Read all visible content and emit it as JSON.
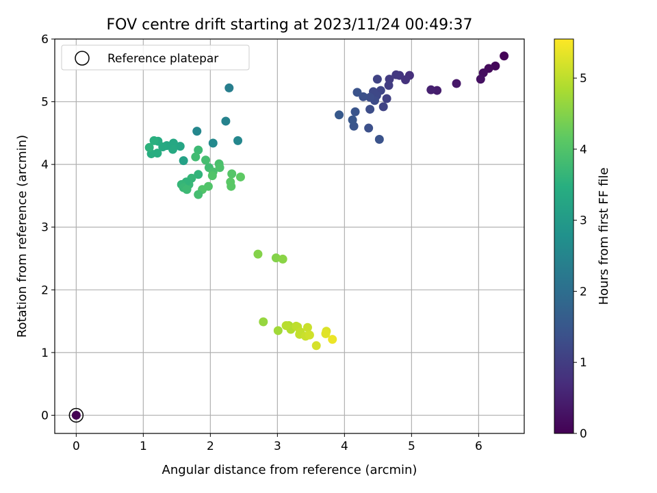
{
  "chart_data": {
    "type": "scatter",
    "title": "FOV centre drift starting at 2023/11/24 00:49:37",
    "xlabel": "Angular distance from reference (arcmin)",
    "ylabel": "Rotation from reference (arcmin)",
    "xlim": [
      -0.32,
      6.68
    ],
    "ylim": [
      -0.29,
      6.0
    ],
    "xticks": [
      0,
      1,
      2,
      3,
      4,
      5,
      6
    ],
    "yticks": [
      0,
      1,
      2,
      3,
      4,
      5,
      6
    ],
    "grid": true,
    "legend": {
      "placement": "top-left",
      "entries": [
        "Reference platepar"
      ]
    },
    "colorbar": {
      "label": "Hours from first FF file",
      "colormap": "viridis",
      "range": [
        0,
        5.55
      ],
      "ticks": [
        0,
        1,
        2,
        3,
        4,
        5
      ]
    },
    "reference_point": {
      "x": 0,
      "y": 0,
      "c": 0
    },
    "points": [
      {
        "x": 6.38,
        "y": 5.73,
        "c": 0.05
      },
      {
        "x": 6.25,
        "y": 5.57,
        "c": 0.1
      },
      {
        "x": 6.15,
        "y": 5.53,
        "c": 0.15
      },
      {
        "x": 6.07,
        "y": 5.46,
        "c": 0.2
      },
      {
        "x": 6.03,
        "y": 5.36,
        "c": 0.25
      },
      {
        "x": 5.67,
        "y": 5.29,
        "c": 0.35
      },
      {
        "x": 5.38,
        "y": 5.18,
        "c": 0.45
      },
      {
        "x": 5.29,
        "y": 5.19,
        "c": 0.5
      },
      {
        "x": 4.97,
        "y": 5.42,
        "c": 0.75
      },
      {
        "x": 4.91,
        "y": 5.35,
        "c": 0.8
      },
      {
        "x": 4.82,
        "y": 5.42,
        "c": 0.85
      },
      {
        "x": 4.77,
        "y": 5.43,
        "c": 0.9
      },
      {
        "x": 4.67,
        "y": 5.36,
        "c": 0.95
      },
      {
        "x": 4.66,
        "y": 5.26,
        "c": 1.0
      },
      {
        "x": 4.63,
        "y": 5.05,
        "c": 1.05
      },
      {
        "x": 4.58,
        "y": 4.92,
        "c": 1.1
      },
      {
        "x": 4.54,
        "y": 5.18,
        "c": 1.15
      },
      {
        "x": 4.49,
        "y": 5.36,
        "c": 1.1
      },
      {
        "x": 4.48,
        "y": 5.1,
        "c": 1.2
      },
      {
        "x": 4.45,
        "y": 5.02,
        "c": 1.25
      },
      {
        "x": 4.43,
        "y": 5.16,
        "c": 1.2
      },
      {
        "x": 4.38,
        "y": 5.07,
        "c": 1.3
      },
      {
        "x": 4.38,
        "y": 4.88,
        "c": 1.3
      },
      {
        "x": 4.36,
        "y": 4.58,
        "c": 1.35
      },
      {
        "x": 4.28,
        "y": 5.08,
        "c": 1.35
      },
      {
        "x": 4.19,
        "y": 5.15,
        "c": 1.4
      },
      {
        "x": 4.16,
        "y": 4.84,
        "c": 1.45
      },
      {
        "x": 4.14,
        "y": 4.61,
        "c": 1.45
      },
      {
        "x": 4.12,
        "y": 4.71,
        "c": 1.5
      },
      {
        "x": 4.52,
        "y": 4.4,
        "c": 1.4
      },
      {
        "x": 3.92,
        "y": 4.79,
        "c": 1.55
      },
      {
        "x": 2.28,
        "y": 5.22,
        "c": 2.35
      },
      {
        "x": 2.23,
        "y": 4.69,
        "c": 2.45
      },
      {
        "x": 2.41,
        "y": 4.38,
        "c": 2.55
      },
      {
        "x": 2.04,
        "y": 4.34,
        "c": 2.6
      },
      {
        "x": 1.8,
        "y": 4.53,
        "c": 2.55
      },
      {
        "x": 1.6,
        "y": 4.06,
        "c": 3.15
      },
      {
        "x": 1.55,
        "y": 4.29,
        "c": 3.25
      },
      {
        "x": 1.45,
        "y": 4.34,
        "c": 3.3
      },
      {
        "x": 1.44,
        "y": 4.24,
        "c": 3.35
      },
      {
        "x": 1.35,
        "y": 4.3,
        "c": 3.3
      },
      {
        "x": 1.29,
        "y": 4.28,
        "c": 3.35
      },
      {
        "x": 1.22,
        "y": 4.37,
        "c": 3.4
      },
      {
        "x": 1.21,
        "y": 4.18,
        "c": 3.45
      },
      {
        "x": 1.16,
        "y": 4.38,
        "c": 3.5
      },
      {
        "x": 1.12,
        "y": 4.17,
        "c": 3.45
      },
      {
        "x": 1.09,
        "y": 4.27,
        "c": 3.55
      },
      {
        "x": 1.82,
        "y": 4.23,
        "c": 3.75
      },
      {
        "x": 1.78,
        "y": 4.12,
        "c": 3.8
      },
      {
        "x": 1.93,
        "y": 4.07,
        "c": 3.85
      },
      {
        "x": 1.98,
        "y": 3.95,
        "c": 3.8
      },
      {
        "x": 2.13,
        "y": 4.01,
        "c": 3.9
      },
      {
        "x": 2.14,
        "y": 3.95,
        "c": 3.95
      },
      {
        "x": 2.04,
        "y": 3.88,
        "c": 3.9
      },
      {
        "x": 2.03,
        "y": 3.82,
        "c": 4.0
      },
      {
        "x": 1.82,
        "y": 3.84,
        "c": 3.6
      },
      {
        "x": 1.72,
        "y": 3.78,
        "c": 3.65
      },
      {
        "x": 1.68,
        "y": 3.68,
        "c": 3.7
      },
      {
        "x": 1.64,
        "y": 3.72,
        "c": 3.6
      },
      {
        "x": 1.57,
        "y": 3.68,
        "c": 3.65
      },
      {
        "x": 1.6,
        "y": 3.63,
        "c": 3.7
      },
      {
        "x": 1.65,
        "y": 3.6,
        "c": 3.75
      },
      {
        "x": 1.88,
        "y": 3.6,
        "c": 4.0
      },
      {
        "x": 1.97,
        "y": 3.65,
        "c": 4.0
      },
      {
        "x": 1.82,
        "y": 3.52,
        "c": 3.85
      },
      {
        "x": 2.32,
        "y": 3.85,
        "c": 4.05
      },
      {
        "x": 2.3,
        "y": 3.72,
        "c": 4.1
      },
      {
        "x": 2.31,
        "y": 3.65,
        "c": 4.1
      },
      {
        "x": 2.45,
        "y": 3.8,
        "c": 4.15
      },
      {
        "x": 2.71,
        "y": 2.57,
        "c": 4.5
      },
      {
        "x": 2.98,
        "y": 2.51,
        "c": 4.5
      },
      {
        "x": 3.08,
        "y": 2.49,
        "c": 4.55
      },
      {
        "x": 2.79,
        "y": 1.49,
        "c": 4.65
      },
      {
        "x": 3.01,
        "y": 1.35,
        "c": 4.75
      },
      {
        "x": 3.17,
        "y": 1.43,
        "c": 4.85
      },
      {
        "x": 3.2,
        "y": 1.37,
        "c": 4.9
      },
      {
        "x": 3.13,
        "y": 1.43,
        "c": 4.95
      },
      {
        "x": 3.3,
        "y": 1.41,
        "c": 5.0
      },
      {
        "x": 3.28,
        "y": 1.42,
        "c": 5.0
      },
      {
        "x": 3.34,
        "y": 1.33,
        "c": 5.05
      },
      {
        "x": 3.33,
        "y": 1.29,
        "c": 5.05
      },
      {
        "x": 3.42,
        "y": 1.26,
        "c": 5.1
      },
      {
        "x": 3.45,
        "y": 1.4,
        "c": 5.1
      },
      {
        "x": 3.48,
        "y": 1.28,
        "c": 5.15
      },
      {
        "x": 3.58,
        "y": 1.11,
        "c": 5.2
      },
      {
        "x": 3.73,
        "y": 1.34,
        "c": 5.25
      },
      {
        "x": 3.72,
        "y": 1.3,
        "c": 5.3
      },
      {
        "x": 3.82,
        "y": 1.21,
        "c": 5.4
      }
    ]
  }
}
